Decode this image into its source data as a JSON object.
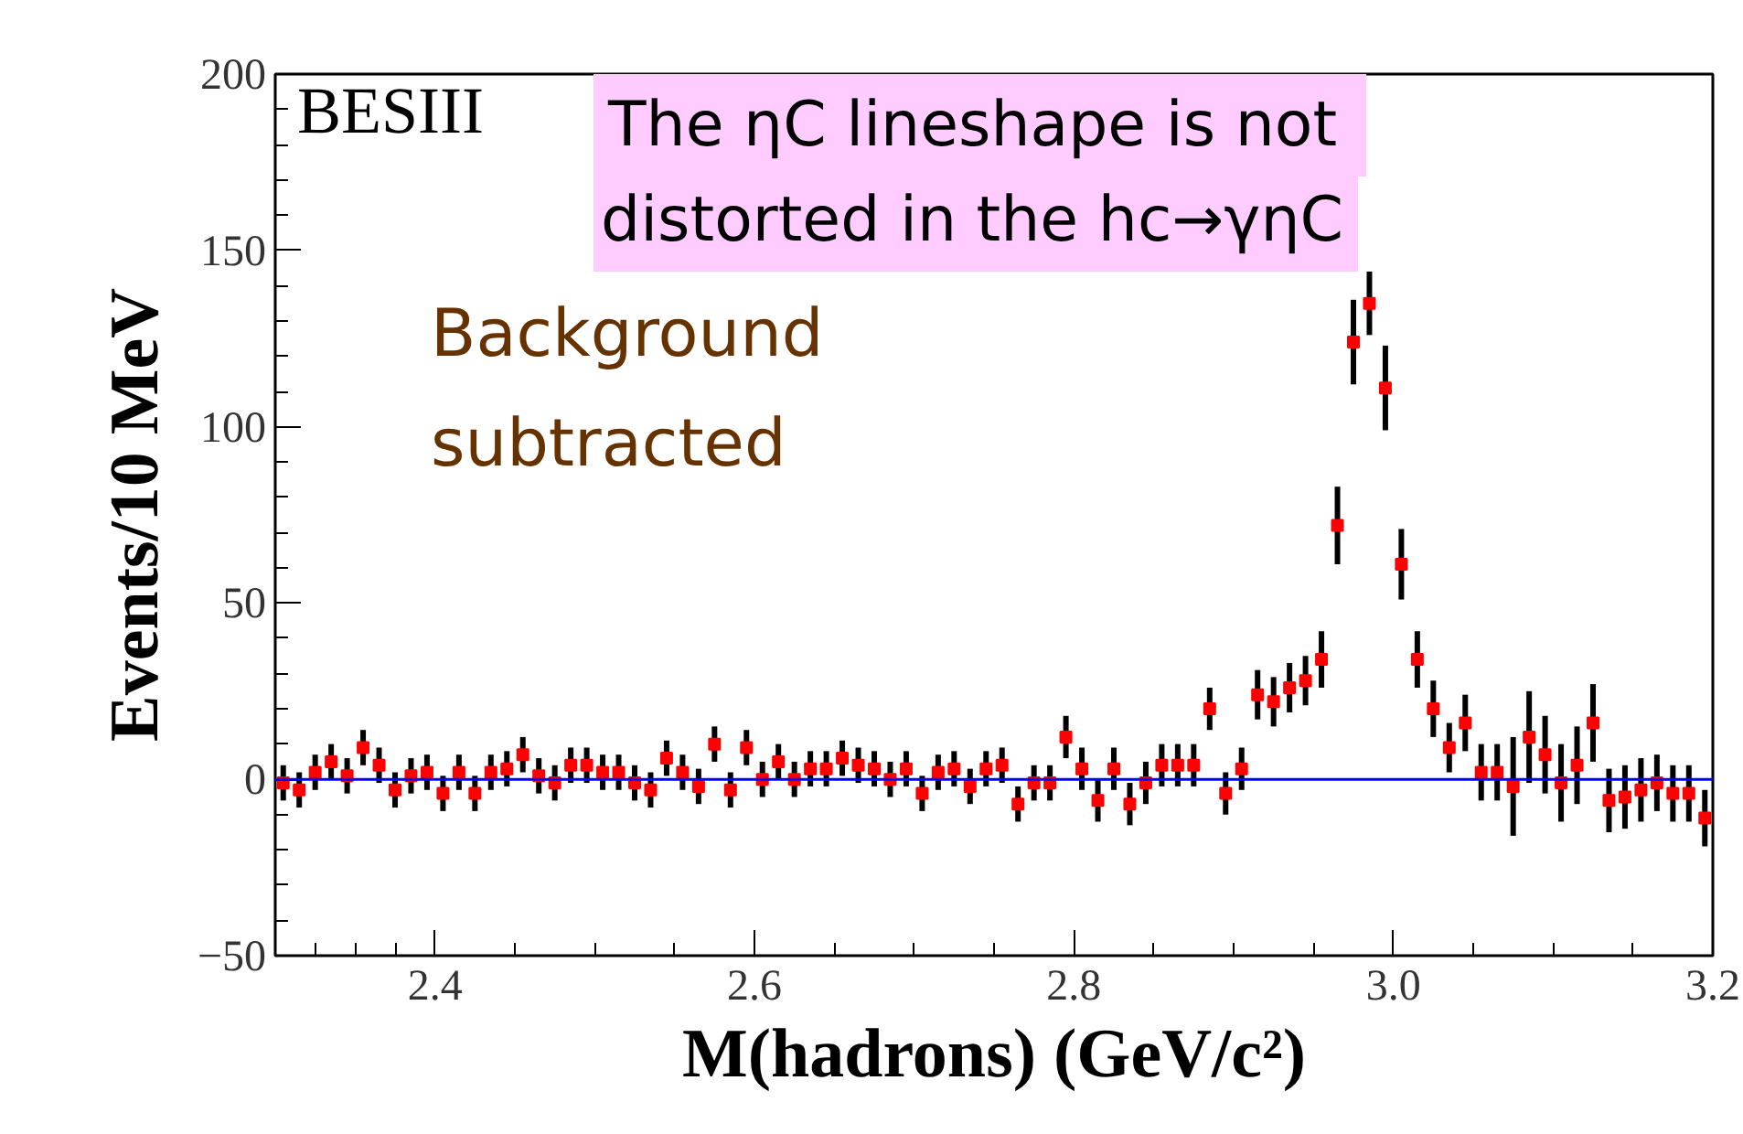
{
  "chart_data": {
    "type": "scatter",
    "xlabel": "M(hadrons) (GeV/c²)",
    "ylabel": "Events/10 MeV",
    "annotations": [
      "BESIII",
      "Background\nsubtracted",
      "The ηC lineshape is not\ndistorted in the hc→γηC"
    ],
    "x": [
      2.305,
      2.315,
      2.325,
      2.335,
      2.345,
      2.355,
      2.365,
      2.375,
      2.385,
      2.395,
      2.405,
      2.415,
      2.425,
      2.435,
      2.445,
      2.455,
      2.465,
      2.475,
      2.485,
      2.495,
      2.505,
      2.515,
      2.525,
      2.535,
      2.545,
      2.555,
      2.565,
      2.575,
      2.585,
      2.595,
      2.605,
      2.615,
      2.625,
      2.635,
      2.645,
      2.655,
      2.665,
      2.675,
      2.685,
      2.695,
      2.705,
      2.715,
      2.725,
      2.735,
      2.745,
      2.755,
      2.765,
      2.775,
      2.785,
      2.795,
      2.805,
      2.815,
      2.825,
      2.835,
      2.845,
      2.855,
      2.865,
      2.875,
      2.885,
      2.895,
      2.905,
      2.915,
      2.925,
      2.935,
      2.945,
      2.955,
      2.965,
      2.975,
      2.985,
      2.995,
      3.005,
      3.015,
      3.025,
      3.035,
      3.045,
      3.055,
      3.065,
      3.075,
      3.085,
      3.095,
      3.105,
      3.115,
      3.125,
      3.135,
      3.145,
      3.155,
      3.165,
      3.175,
      3.185,
      3.195
    ],
    "series": [
      {
        "color": "#ff0000",
        "values": [
          -1,
          -3,
          2,
          5,
          1,
          9,
          4,
          -3,
          1,
          2,
          -4,
          2,
          -4,
          2,
          3,
          7,
          1,
          -1,
          4,
          4,
          2,
          2,
          -1,
          -3,
          6,
          2,
          -2,
          10,
          -3,
          9,
          0,
          5,
          0,
          3,
          3,
          6,
          4,
          3,
          0,
          3,
          -4,
          2,
          3,
          -2,
          3,
          4,
          -7,
          -1,
          -1,
          12,
          3,
          -6,
          3,
          -7,
          -1,
          4,
          4,
          4,
          20,
          -4,
          3,
          24,
          22,
          26,
          28,
          34,
          72,
          124,
          135,
          111,
          61,
          34,
          20,
          9,
          16,
          2,
          2,
          -2,
          12,
          7,
          -1,
          4,
          16,
          -6,
          -5,
          -3,
          -1,
          -4,
          -4,
          -11
        ],
        "errors": [
          5,
          5,
          5,
          5,
          5,
          5,
          5,
          5,
          5,
          5,
          5,
          5,
          5,
          5,
          5,
          5,
          5,
          5,
          5,
          5,
          5,
          5,
          5,
          5,
          5,
          5,
          5,
          5,
          5,
          5,
          5,
          5,
          5,
          5,
          5,
          5,
          5,
          5,
          5,
          5,
          5,
          5,
          5,
          5,
          5,
          5,
          5,
          5,
          5,
          6,
          6,
          6,
          6,
          6,
          6,
          6,
          6,
          6,
          6,
          6,
          6,
          7,
          7,
          7,
          7,
          8,
          11,
          12,
          9,
          12,
          10,
          8,
          8,
          7,
          8,
          8,
          8,
          14,
          13,
          11,
          11,
          11,
          11,
          9,
          9,
          9,
          8,
          8,
          8,
          8
        ]
      }
    ],
    "xlim": [
      2.3,
      3.2
    ],
    "xticks": [
      2.4,
      2.6,
      2.8,
      {
        "value": 3.0,
        "label": "3.0"
      },
      3.2
    ],
    "ylim": [
      -50,
      200
    ],
    "yticks": [
      -50,
      0,
      50,
      100,
      150,
      200
    ],
    "ref_lines": [
      {
        "axis": "y",
        "value": 0,
        "color": "#0000ff"
      }
    ],
    "marker": "square",
    "grid": false
  }
}
